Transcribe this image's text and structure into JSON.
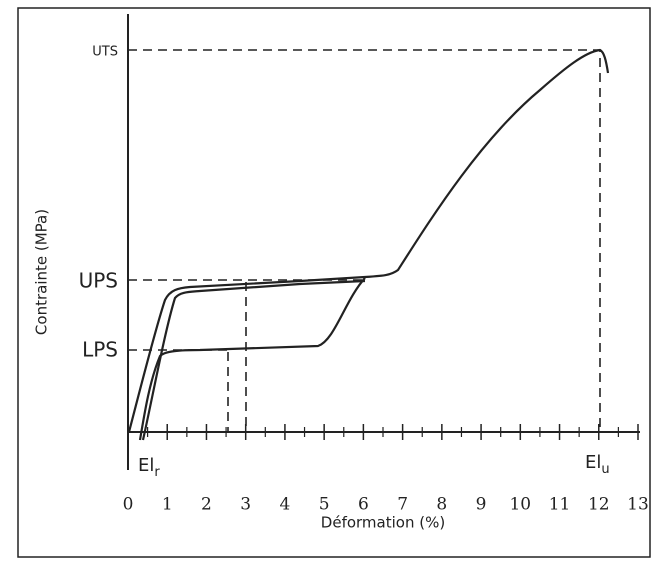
{
  "y_axis": {
    "label": "Contrainte (MPa)",
    "levels": [
      "UTS",
      "UPS",
      "LPS"
    ]
  },
  "x_axis": {
    "label": "Déformation (%)",
    "ticks": [
      "0",
      "1",
      "2",
      "3",
      "4",
      "5",
      "6",
      "7",
      "8",
      "9",
      "10",
      "11",
      "12",
      "13"
    ]
  },
  "markers": [
    {
      "label": "El",
      "sub": "r"
    },
    {
      "label": "El",
      "sub": "u"
    }
  ]
}
